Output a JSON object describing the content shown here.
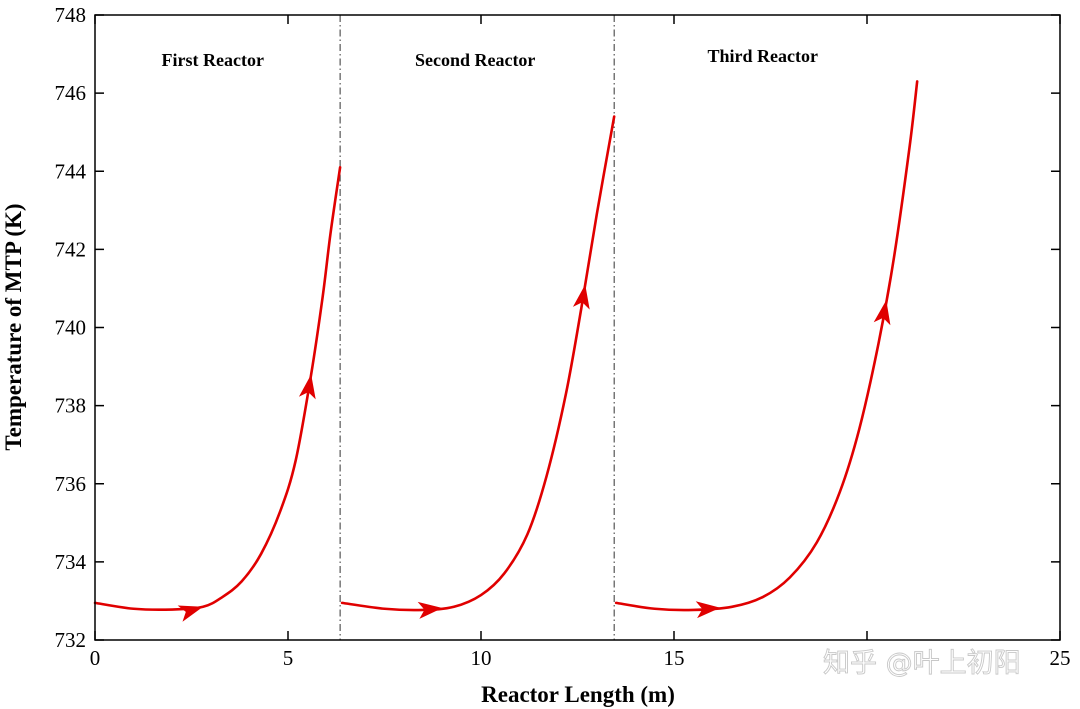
{
  "chart_data": {
    "type": "line",
    "title": "",
    "xlabel": "Reactor Length (m)",
    "ylabel": "Temperature of MTP (K)",
    "xlim": [
      0,
      25
    ],
    "ylim": [
      732,
      748
    ],
    "xticks": [
      0,
      5,
      10,
      15,
      20,
      25
    ],
    "xtick_labels": [
      "0",
      "5",
      "10",
      "15",
      "",
      "25"
    ],
    "yticks": [
      732,
      734,
      736,
      738,
      740,
      742,
      744,
      746,
      748
    ],
    "grid": false,
    "legend": "none",
    "line_color": "#e00000",
    "divider_lines_x": [
      6.35,
      13.45
    ],
    "regions": [
      {
        "label": "First Reactor",
        "x_center": 3.05,
        "y": 746.7
      },
      {
        "label": "Second Reactor",
        "x_center": 9.85,
        "y": 746.7
      },
      {
        "label": "Third Reactor",
        "x_center": 17.3,
        "y": 746.8
      }
    ],
    "series": [
      {
        "x": [
          0,
          1,
          2,
          2.8,
          3.3,
          3.8,
          4.3,
          4.8,
          5.2,
          5.6,
          5.9,
          6.1,
          6.35
        ],
        "y": [
          732.95,
          732.8,
          732.78,
          732.85,
          733.1,
          733.5,
          734.2,
          735.3,
          736.6,
          738.8,
          740.8,
          742.4,
          744.1
        ],
        "arrows_at": [
          2.8,
          5.6
        ]
      },
      {
        "x": [
          6.4,
          7.5,
          8.5,
          9.3,
          10.0,
          10.6,
          11.2,
          11.7,
          12.2,
          12.6,
          13.0,
          13.45
        ],
        "y": [
          732.95,
          732.8,
          732.77,
          732.85,
          733.15,
          733.7,
          734.7,
          736.2,
          738.3,
          740.5,
          742.9,
          745.4
        ],
        "arrows_at": [
          9.0,
          12.7
        ]
      },
      {
        "x": [
          13.5,
          14.5,
          15.5,
          16.5,
          17.3,
          18.0,
          18.7,
          19.3,
          19.8,
          20.3,
          20.7,
          21.1,
          21.3
        ],
        "y": [
          732.95,
          732.8,
          732.77,
          732.85,
          733.1,
          733.6,
          734.5,
          735.8,
          737.4,
          739.6,
          741.8,
          744.6,
          746.3
        ],
        "arrows_at": [
          16.2,
          20.5
        ]
      }
    ]
  },
  "watermark": {
    "text": "知乎 @叶上初阳"
  }
}
